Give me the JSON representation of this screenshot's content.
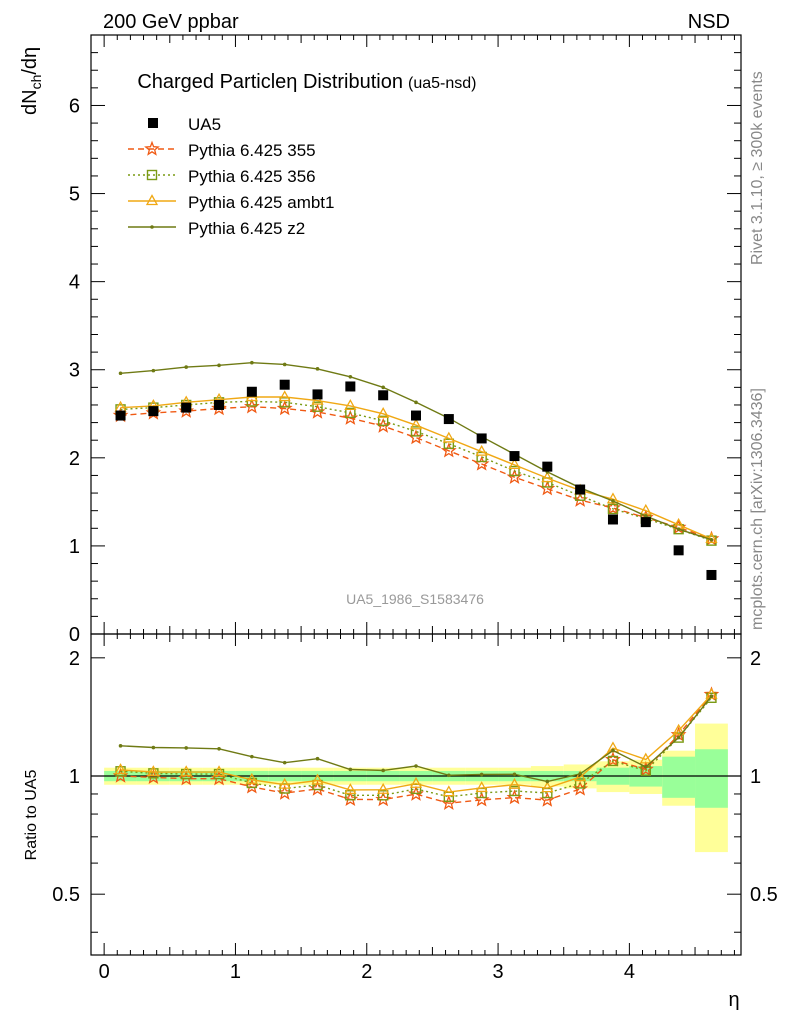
{
  "header": {
    "left": "200 GeV ppbar",
    "right": "NSD"
  },
  "side_text": {
    "rivet": "Rivet 3.1.10, ≥ 300k events",
    "mcplots": "mcplots.cern.ch [arXiv:1306.3436]"
  },
  "chart_data": {
    "type": "line",
    "title": "Charged Particleη Distribution",
    "subtitle": "(ua5-nsd)",
    "watermark": "UA5_1986_S1583476",
    "xlabel": "η",
    "ylabel": "dN",
    "ylabel_sub": "ch",
    "ylabel_tail": "/dη",
    "ratio_ylabel": "Ratio to UA5",
    "xlim": [
      -0.1,
      4.85
    ],
    "ylim": [
      0,
      6.8
    ],
    "ratio_ylim": [
      0.35,
      2.3
    ],
    "x_ticks": [
      "0",
      "1",
      "2",
      "3",
      "4"
    ],
    "y_ticks": [
      "0",
      "1",
      "2",
      "3",
      "4",
      "5",
      "6"
    ],
    "ratio_y_ticks": [
      "0.5",
      "1",
      "2"
    ],
    "x": [
      0.125,
      0.375,
      0.625,
      0.875,
      1.125,
      1.375,
      1.625,
      1.875,
      2.125,
      2.375,
      2.625,
      2.875,
      3.125,
      3.375,
      3.625,
      3.875,
      4.125,
      4.375,
      4.625
    ],
    "data": {
      "name": "UA5",
      "values": [
        2.48,
        2.53,
        2.57,
        2.6,
        2.75,
        2.83,
        2.72,
        2.81,
        2.71,
        2.48,
        2.44,
        2.22,
        2.02,
        1.9,
        1.64,
        1.3,
        1.27,
        0.95,
        0.67
      ],
      "band_stat_rel": [
        0.03,
        0.03,
        0.03,
        0.03,
        0.03,
        0.03,
        0.03,
        0.03,
        0.03,
        0.03,
        0.03,
        0.03,
        0.03,
        0.03,
        0.03,
        0.05,
        0.06,
        0.12,
        0.17
      ],
      "band_total_rel": [
        0.05,
        0.05,
        0.05,
        0.05,
        0.05,
        0.05,
        0.05,
        0.05,
        0.05,
        0.05,
        0.05,
        0.05,
        0.05,
        0.06,
        0.07,
        0.09,
        0.1,
        0.16,
        0.36
      ]
    },
    "series": [
      {
        "name": "Pythia 6.425 355",
        "color": "#f05a14",
        "style": "dashed",
        "marker": "star",
        "values": [
          2.48,
          2.51,
          2.53,
          2.56,
          2.58,
          2.56,
          2.52,
          2.45,
          2.36,
          2.23,
          2.08,
          1.93,
          1.78,
          1.65,
          1.52,
          1.43,
          1.32,
          1.21,
          1.08
        ]
      },
      {
        "name": "Pythia 6.425 356",
        "color": "#7a9a14",
        "style": "dotted",
        "marker": "square",
        "values": [
          2.55,
          2.57,
          2.6,
          2.63,
          2.64,
          2.63,
          2.58,
          2.51,
          2.42,
          2.3,
          2.16,
          2.01,
          1.85,
          1.72,
          1.57,
          1.42,
          1.31,
          1.19,
          1.06
        ]
      },
      {
        "name": "Pythia 6.425 ambt1",
        "color": "#f0a814",
        "style": "solid",
        "marker": "triangle",
        "values": [
          2.57,
          2.59,
          2.63,
          2.66,
          2.69,
          2.69,
          2.65,
          2.59,
          2.5,
          2.37,
          2.22,
          2.07,
          1.92,
          1.77,
          1.63,
          1.53,
          1.4,
          1.24,
          1.08
        ]
      },
      {
        "name": "Pythia 6.425 z2",
        "color": "#6f7a14",
        "style": "solid",
        "marker": "dot",
        "values": [
          2.96,
          2.99,
          3.03,
          3.05,
          3.08,
          3.06,
          3.01,
          2.92,
          2.8,
          2.63,
          2.45,
          2.24,
          2.04,
          1.84,
          1.66,
          1.51,
          1.34,
          1.19,
          1.07
        ]
      }
    ]
  }
}
